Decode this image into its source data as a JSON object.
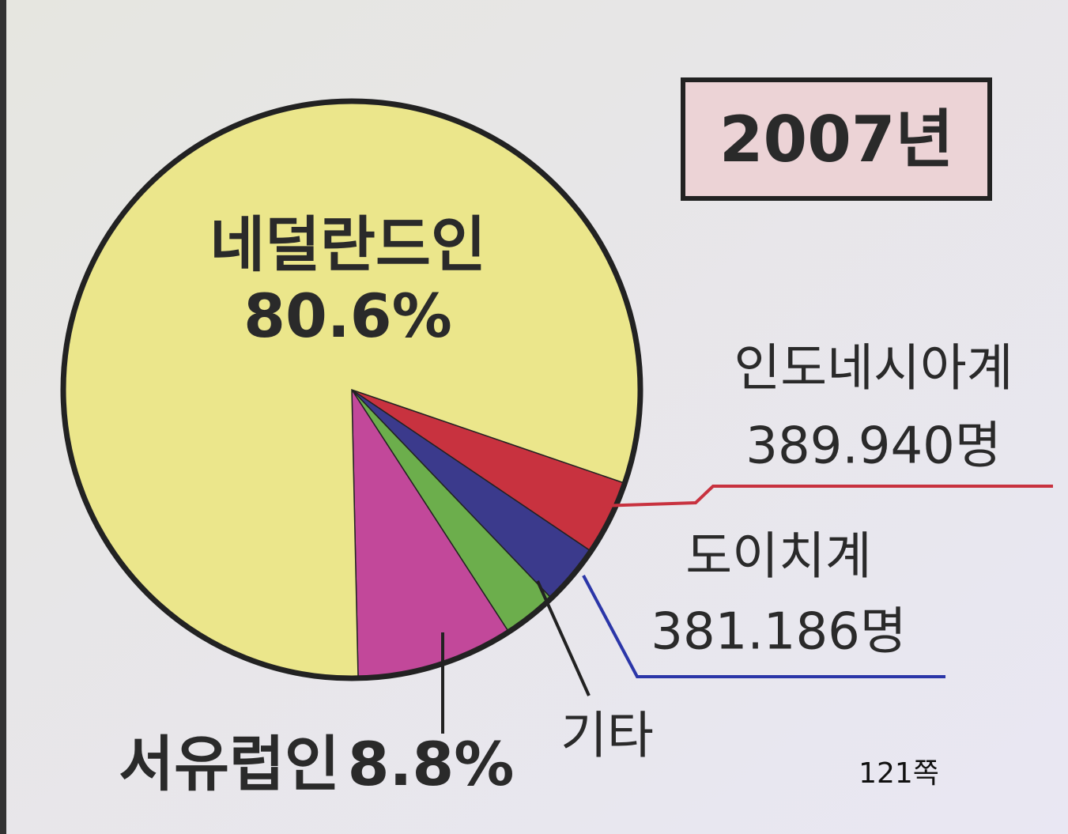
{
  "chart_data": {
    "type": "pie",
    "title": "2007년",
    "categories": [
      "인도네시아계",
      "도이치계",
      "기타",
      "서유럽인",
      "네덜란드인"
    ],
    "values": [
      4.2,
      3.4,
      3.0,
      8.8,
      80.6
    ],
    "value_labels": [
      null,
      null,
      null,
      "8.8%",
      "80.6%"
    ],
    "counts": [
      {
        "value": 389940,
        "label": "389.940명"
      },
      {
        "value": 381186,
        "label": "381.186명"
      },
      null,
      null,
      null
    ],
    "colors": [
      "#c8323f",
      "#3b3a8c",
      "#6cae4c",
      "#c2489a",
      "#ebe68b"
    ],
    "page_note": "121쪽"
  }
}
